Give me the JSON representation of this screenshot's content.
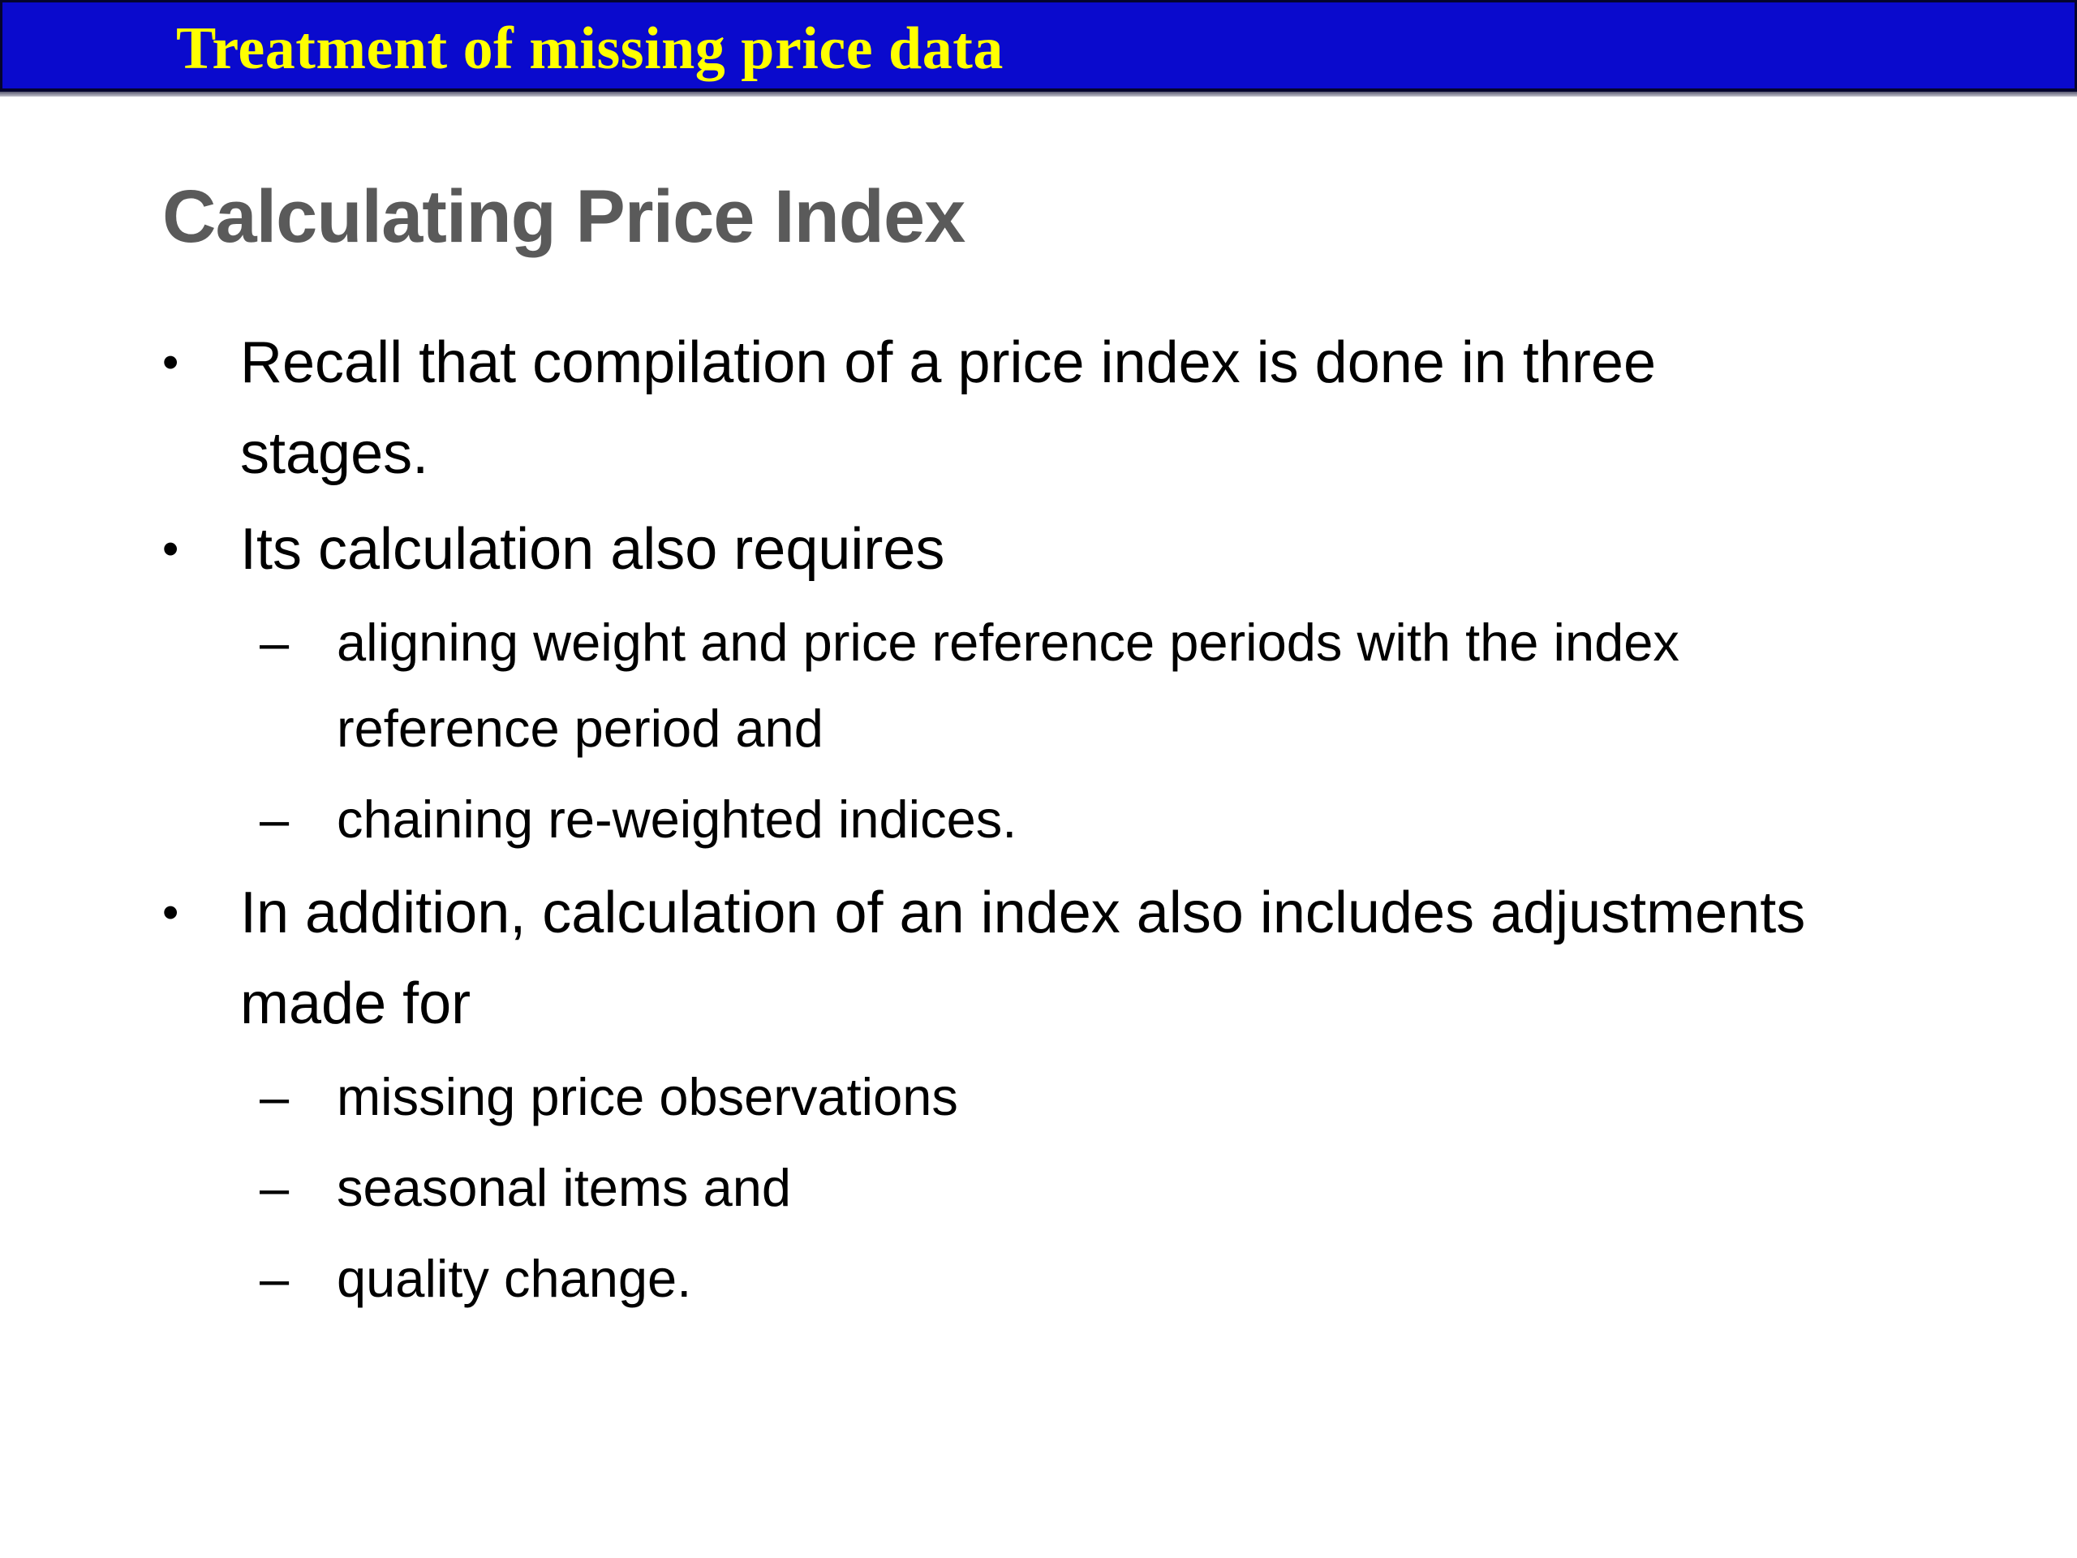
{
  "banner": {
    "title": "Treatment of missing price data",
    "background_color": "#0a0acd",
    "border_color": "#04042e",
    "text_color": "#ffff00"
  },
  "content": {
    "title": "Calculating Price Index",
    "title_color": "#5a5a5a",
    "text_color": "#000000",
    "bullets": [
      {
        "level": 1,
        "marker": "•",
        "lines": [
          "Recall that compilation of a price index is done in three",
          "stages."
        ]
      },
      {
        "level": 1,
        "marker": "•",
        "lines": [
          "Its calculation also requires"
        ]
      },
      {
        "level": 2,
        "marker": "–",
        "lines": [
          "aligning weight and price reference periods with the index",
          "reference period and"
        ]
      },
      {
        "level": 2,
        "marker": "–",
        "lines": [
          "chaining re-weighted indices."
        ]
      },
      {
        "level": 1,
        "marker": "•",
        "lines": [
          "In addition, calculation of an index also includes adjustments",
          "made for"
        ]
      },
      {
        "level": 2,
        "marker": "–",
        "lines": [
          "missing price observations"
        ]
      },
      {
        "level": 2,
        "marker": "–",
        "lines": [
          "seasonal items and"
        ]
      },
      {
        "level": 2,
        "marker": "–",
        "lines": [
          "quality change."
        ]
      }
    ]
  }
}
